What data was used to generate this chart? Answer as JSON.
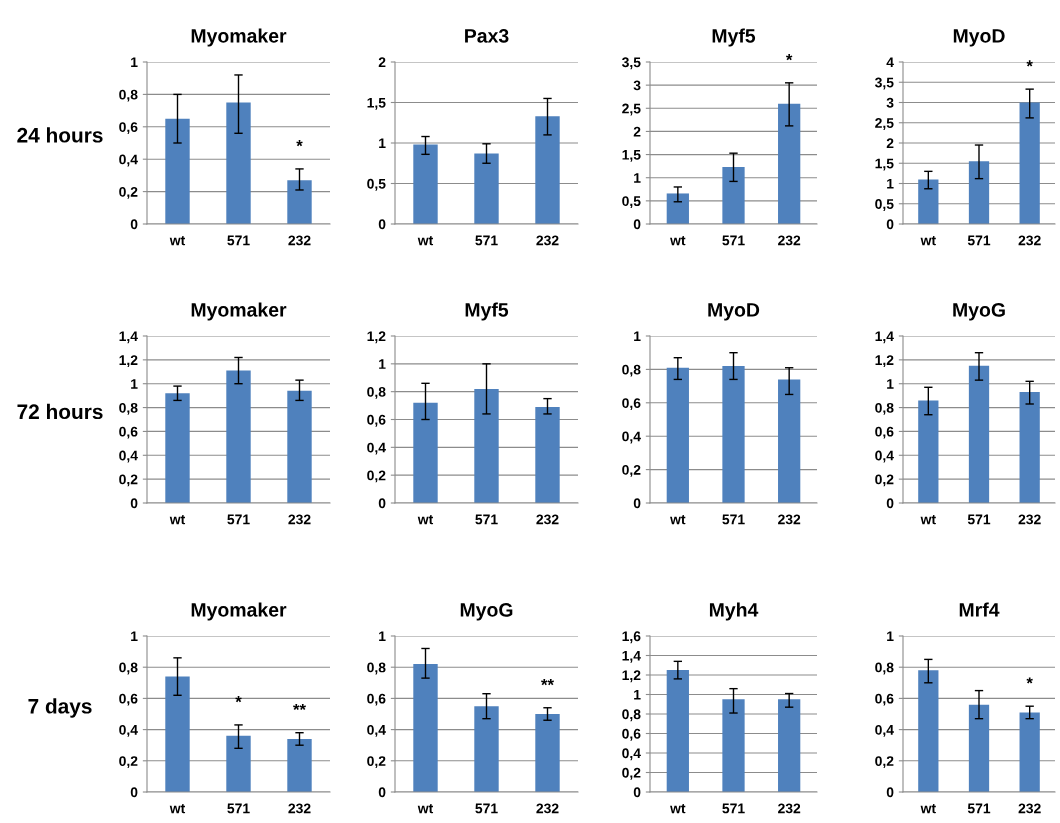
{
  "chart_data": [
    {
      "type": "bar",
      "title": "Myomaker",
      "categories": [
        "wt",
        "571",
        "232"
      ],
      "values": [
        0.65,
        0.75,
        0.27
      ],
      "errors": [
        [
          0.5,
          0.8
        ],
        [
          0.56,
          0.92
        ],
        [
          0.21,
          0.34
        ]
      ],
      "color": "#4f81bd",
      "ylim": [
        0,
        1
      ],
      "yticks": [
        0,
        {
          "value": 0.2,
          "label": "0,2"
        },
        {
          "value": 0.4,
          "label": "0,4"
        },
        {
          "value": 0.6,
          "label": "0,6"
        },
        {
          "value": 0.8,
          "label": "0,8"
        },
        1
      ],
      "grid": "y",
      "annotations": [
        "24 hours",
        "*"
      ]
    },
    {
      "type": "bar",
      "title": "Pax3",
      "categories": [
        "wt",
        "571",
        "232"
      ],
      "values": [
        0.98,
        0.87,
        1.33
      ],
      "errors": [
        [
          0.86,
          1.08
        ],
        [
          0.75,
          0.99
        ],
        [
          1.1,
          1.55
        ]
      ],
      "color": "#4f81bd",
      "ylim": [
        0,
        2
      ],
      "yticks": [
        0,
        {
          "value": 0.5,
          "label": "0,5"
        },
        1,
        {
          "value": 1.5,
          "label": "1,5"
        },
        2
      ],
      "grid": "y"
    },
    {
      "type": "bar",
      "title": "Myf5",
      "categories": [
        "wt",
        "571",
        "232"
      ],
      "values": [
        0.66,
        1.23,
        2.6
      ],
      "errors": [
        [
          0.48,
          0.8
        ],
        [
          0.92,
          1.53
        ],
        [
          2.12,
          3.05
        ]
      ],
      "color": "#4f81bd",
      "ylim": [
        0,
        3.5
      ],
      "yticks": [
        0,
        {
          "value": 0.5,
          "label": "0,5"
        },
        1,
        {
          "value": 1.5,
          "label": "1,5"
        },
        2,
        {
          "value": 2.5,
          "label": "2,5"
        },
        3,
        {
          "value": 3.5,
          "label": "3,5"
        }
      ],
      "grid": "y",
      "annotations": [
        "*"
      ]
    },
    {
      "type": "bar",
      "title": "MyoD",
      "categories": [
        "wt",
        "571",
        "232"
      ],
      "values": [
        1.1,
        1.55,
        3.0
      ],
      "errors": [
        [
          0.87,
          1.3
        ],
        [
          1.12,
          1.95
        ],
        [
          2.62,
          3.33
        ]
      ],
      "color": "#4f81bd",
      "ylim": [
        0,
        4
      ],
      "yticks": [
        0,
        {
          "value": 0.5,
          "label": "0,5"
        },
        1,
        {
          "value": 1.5,
          "label": "1,5"
        },
        2,
        {
          "value": 2.5,
          "label": "2,5"
        },
        3,
        {
          "value": 3.5,
          "label": "3,5"
        },
        4
      ],
      "grid": "y",
      "annotations": [
        "*"
      ]
    },
    {
      "type": "bar",
      "title": "Myomaker",
      "categories": [
        "wt",
        "571",
        "232"
      ],
      "values": [
        0.92,
        1.11,
        0.94
      ],
      "errors": [
        [
          0.86,
          0.98
        ],
        [
          1.0,
          1.22
        ],
        [
          0.86,
          1.03
        ]
      ],
      "color": "#4f81bd",
      "ylim": [
        0,
        1.4
      ],
      "yticks": [
        0,
        {
          "value": 0.2,
          "label": "0,2"
        },
        {
          "value": 0.4,
          "label": "0,4"
        },
        {
          "value": 0.6,
          "label": "0,6"
        },
        {
          "value": 0.8,
          "label": "0,8"
        },
        1,
        {
          "value": 1.2,
          "label": "1,2"
        },
        {
          "value": 1.4,
          "label": "1,4"
        }
      ],
      "grid": "y",
      "annotations": [
        "72 hours"
      ]
    },
    {
      "type": "bar",
      "title": "Myf5",
      "categories": [
        "wt",
        "571",
        "232"
      ],
      "values": [
        0.72,
        0.82,
        0.69
      ],
      "errors": [
        [
          0.6,
          0.86
        ],
        [
          0.64,
          1.0
        ],
        [
          0.64,
          0.75
        ]
      ],
      "color": "#4f81bd",
      "ylim": [
        0,
        1.2
      ],
      "yticks": [
        0,
        {
          "value": 0.2,
          "label": "0,2"
        },
        {
          "value": 0.4,
          "label": "0,4"
        },
        {
          "value": 0.6,
          "label": "0,6"
        },
        {
          "value": 0.8,
          "label": "0,8"
        },
        1,
        {
          "value": 1.2,
          "label": "1,2"
        }
      ],
      "grid": "y"
    },
    {
      "type": "bar",
      "title": "MyoD",
      "categories": [
        "wt",
        "571",
        "232"
      ],
      "values": [
        0.81,
        0.82,
        0.74
      ],
      "errors": [
        [
          0.74,
          0.87
        ],
        [
          0.74,
          0.9
        ],
        [
          0.65,
          0.81
        ]
      ],
      "color": "#4f81bd",
      "ylim": [
        0,
        1
      ],
      "yticks": [
        0,
        {
          "value": 0.2,
          "label": "0,2"
        },
        {
          "value": 0.4,
          "label": "0,4"
        },
        {
          "value": 0.6,
          "label": "0,6"
        },
        {
          "value": 0.8,
          "label": "0,8"
        },
        1
      ],
      "grid": "y"
    },
    {
      "type": "bar",
      "title": "MyoG",
      "categories": [
        "wt",
        "571",
        "232"
      ],
      "values": [
        0.86,
        1.15,
        0.93
      ],
      "errors": [
        [
          0.74,
          0.97
        ],
        [
          1.03,
          1.26
        ],
        [
          0.83,
          1.02
        ]
      ],
      "color": "#4f81bd",
      "ylim": [
        0,
        1.4
      ],
      "yticks": [
        0,
        {
          "value": 0.2,
          "label": "0,2"
        },
        {
          "value": 0.4,
          "label": "0,4"
        },
        {
          "value": 0.6,
          "label": "0,6"
        },
        {
          "value": 0.8,
          "label": "0,8"
        },
        1,
        {
          "value": 1.2,
          "label": "1,2"
        },
        {
          "value": 1.4,
          "label": "1,4"
        }
      ],
      "grid": "y"
    },
    {
      "type": "bar",
      "title": "Myomaker",
      "categories": [
        "wt",
        "571",
        "232"
      ],
      "values": [
        0.74,
        0.36,
        0.34
      ],
      "errors": [
        [
          0.62,
          0.86
        ],
        [
          0.28,
          0.43
        ],
        [
          0.3,
          0.38
        ]
      ],
      "color": "#4f81bd",
      "ylim": [
        0,
        1
      ],
      "yticks": [
        0,
        {
          "value": 0.2,
          "label": "0,2"
        },
        {
          "value": 0.4,
          "label": "0,4"
        },
        {
          "value": 0.6,
          "label": "0,6"
        },
        {
          "value": 0.8,
          "label": "0,8"
        },
        1
      ],
      "grid": "y",
      "annotations": [
        "7 days",
        "*",
        "**"
      ]
    },
    {
      "type": "bar",
      "title": "MyoG",
      "categories": [
        "wt",
        "571",
        "232"
      ],
      "values": [
        0.82,
        0.55,
        0.5
      ],
      "errors": [
        [
          0.73,
          0.92
        ],
        [
          0.47,
          0.63
        ],
        [
          0.46,
          0.54
        ]
      ],
      "color": "#4f81bd",
      "ylim": [
        0,
        1
      ],
      "yticks": [
        0,
        {
          "value": 0.2,
          "label": "0,2"
        },
        {
          "value": 0.4,
          "label": "0,4"
        },
        {
          "value": 0.6,
          "label": "0,6"
        },
        {
          "value": 0.8,
          "label": "0,8"
        },
        1
      ],
      "grid": "y",
      "annotations": [
        "**"
      ]
    },
    {
      "type": "bar",
      "title": "Myh4",
      "categories": [
        "wt",
        "571",
        "232"
      ],
      "values": [
        1.25,
        0.95,
        0.95
      ],
      "errors": [
        [
          1.16,
          1.34
        ],
        [
          0.81,
          1.06
        ],
        [
          0.87,
          1.01
        ]
      ],
      "color": "#4f81bd",
      "ylim": [
        0,
        1.6
      ],
      "yticks": [
        0,
        {
          "value": 0.2,
          "label": "0,2"
        },
        {
          "value": 0.4,
          "label": "0,4"
        },
        {
          "value": 0.6,
          "label": "0,6"
        },
        {
          "value": 0.8,
          "label": "0,8"
        },
        1,
        {
          "value": 1.2,
          "label": "1,2"
        },
        {
          "value": 1.4,
          "label": "1,4"
        },
        {
          "value": 1.6,
          "label": "1,6"
        }
      ],
      "grid": "y"
    },
    {
      "type": "bar",
      "title": "Mrf4",
      "categories": [
        "wt",
        "571",
        "232"
      ],
      "values": [
        0.78,
        0.56,
        0.51
      ],
      "errors": [
        [
          0.7,
          0.85
        ],
        [
          0.47,
          0.65
        ],
        [
          0.47,
          0.55
        ]
      ],
      "color": "#4f81bd",
      "ylim": [
        0,
        1
      ],
      "yticks": [
        0,
        {
          "value": 0.2,
          "label": "0,2"
        },
        {
          "value": 0.4,
          "label": "0,4"
        },
        {
          "value": 0.6,
          "label": "0,6"
        },
        {
          "value": 0.8,
          "label": "0,8"
        },
        1
      ],
      "grid": "y",
      "annotations": [
        "*"
      ]
    }
  ]
}
